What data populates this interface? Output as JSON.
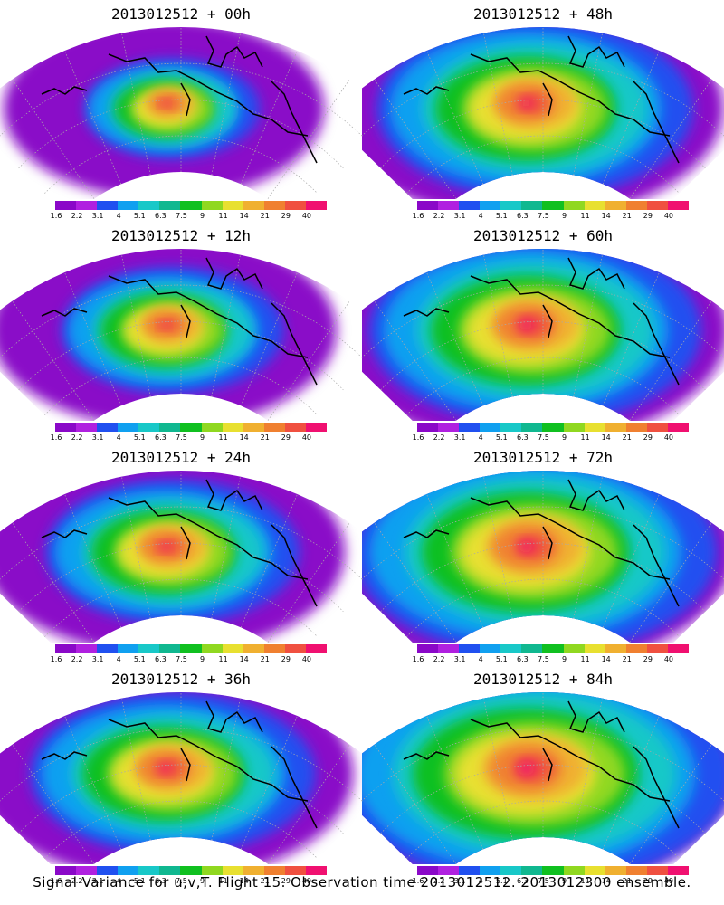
{
  "caption": "Signal Variance for u,v,T. Flight 15. Observation time 2013012512. 2013012300 ensemble.",
  "colorbar": {
    "colors": [
      "#8a08c8",
      "#b020e0",
      "#2050f0",
      "#10a0f0",
      "#18c8c8",
      "#10b890",
      "#10c020",
      "#90d820",
      "#e8e030",
      "#f0b030",
      "#f08030",
      "#f05040",
      "#f01070"
    ],
    "ticks": [
      "1.6",
      "2.2",
      "3.1",
      "4",
      "5.1",
      "6.3",
      "7.5",
      "9",
      "11",
      "14",
      "21",
      "29",
      "40"
    ]
  },
  "panels": [
    {
      "id": "p00",
      "title": "2013012512 + 00h",
      "spread": 0.55,
      "peak": 0.82
    },
    {
      "id": "p48",
      "title": "2013012512 + 48h",
      "spread": 1.0,
      "peak": 0.78
    },
    {
      "id": "p12",
      "title": "2013012512 + 12h",
      "spread": 0.7,
      "peak": 0.72
    },
    {
      "id": "p60",
      "title": "2013012512 + 60h",
      "spread": 1.05,
      "peak": 0.85
    },
    {
      "id": "p24",
      "title": "2013012512 + 24h",
      "spread": 0.8,
      "peak": 0.78
    },
    {
      "id": "p72",
      "title": "2013012512 + 72h",
      "spread": 1.15,
      "peak": 0.8
    },
    {
      "id": "p36",
      "title": "2013012512 + 36h",
      "spread": 0.9,
      "peak": 0.8
    },
    {
      "id": "p84",
      "title": "2013012512 + 84h",
      "spread": 1.25,
      "peak": 0.84
    }
  ]
}
